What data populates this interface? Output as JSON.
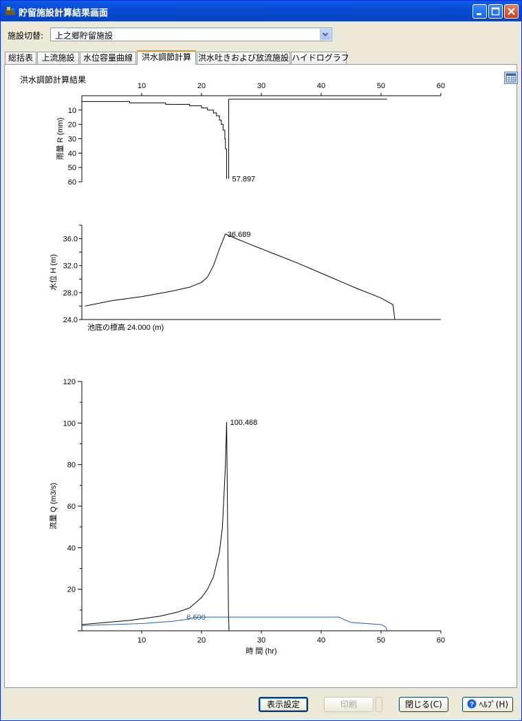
{
  "window": {
    "title": "貯留施設計算結果画面"
  },
  "facility": {
    "label": "施設切替:",
    "selected": "上之郷貯留施設"
  },
  "tabs": [
    {
      "label": "総括表"
    },
    {
      "label": "上流施設"
    },
    {
      "label": "水位容量曲線"
    },
    {
      "label": "洪水調節計算",
      "active": true
    },
    {
      "label": "洪水吐きおよび放流施設"
    },
    {
      "label": "ハイドログラフ"
    }
  ],
  "panel": {
    "title": "洪水調節計算結果"
  },
  "chart_data": [
    {
      "type": "line",
      "ylabel": "雨量 R (mm)",
      "xlim": [
        0,
        60
      ],
      "ylim": [
        60,
        0
      ],
      "x_ticks": [
        "10",
        "20",
        "30",
        "40",
        "50",
        "60"
      ],
      "y_ticks": [
        "10",
        "20",
        "30",
        "40",
        "50",
        "60"
      ],
      "annotation": "57.897",
      "series": [
        {
          "x": [
            0,
            8,
            14,
            18,
            20,
            21,
            22,
            22.5,
            23,
            23.3,
            23.6,
            23.9,
            24,
            24.2
          ],
          "y": [
            4,
            5,
            6,
            7,
            8.5,
            10,
            12,
            14,
            17,
            20,
            24,
            30,
            37,
            57.9
          ]
        }
      ]
    },
    {
      "type": "line",
      "ylabel": "水位 H (m)",
      "xlim": [
        0,
        60
      ],
      "ylim": [
        24,
        38
      ],
      "y_ticks": [
        "24.0",
        "28.0",
        "32.0",
        "36.0"
      ],
      "annotation": "36.689",
      "base_label": "池底の標高 24.000 (m)",
      "series": [
        {
          "x": [
            0.5,
            5,
            10,
            15,
            18,
            20,
            21,
            22,
            23,
            24,
            25,
            28,
            32,
            36,
            41,
            46,
            50,
            52,
            52.3
          ],
          "y": [
            26.0,
            26.8,
            27.4,
            28.2,
            28.8,
            29.5,
            30.3,
            32,
            34.5,
            36.69,
            36.3,
            35.2,
            33.8,
            32.4,
            30.5,
            28.6,
            27.2,
            26.2,
            24.0
          ]
        }
      ]
    },
    {
      "type": "line",
      "ylabel": "流量 Q (m3/s)",
      "xlabel": "時 間 (hr)",
      "xlim": [
        0,
        60
      ],
      "ylim": [
        0,
        120
      ],
      "x_ticks": [
        "10",
        "20",
        "30",
        "40",
        "50",
        "60"
      ],
      "y_ticks": [
        "20",
        "40",
        "60",
        "80",
        "100",
        "120"
      ],
      "annotations": [
        "100.468",
        "6.600"
      ],
      "series": [
        {
          "color": "#000000",
          "x": [
            0,
            8,
            13,
            16,
            18,
            20,
            21,
            22,
            23,
            23.5,
            24,
            24.2,
            24.5,
            24.6
          ],
          "y": [
            3,
            5,
            7,
            9,
            11,
            16,
            20,
            26,
            38,
            50,
            80,
            100.5,
            10,
            0
          ]
        },
        {
          "color": "#1f5fa8",
          "x": [
            0,
            10,
            15,
            17.5,
            18.5,
            20,
            43,
            44,
            45,
            50,
            50.7,
            51.1
          ],
          "y": [
            2.5,
            3.5,
            4.5,
            5.5,
            6.2,
            6.6,
            6.6,
            5.2,
            4,
            3,
            2,
            0
          ]
        }
      ]
    }
  ],
  "buttons": {
    "display_settings": "表示設定",
    "print": "印刷",
    "close": "閉じる(C)",
    "help": "ﾍﾙﾌﾟ(H)"
  }
}
